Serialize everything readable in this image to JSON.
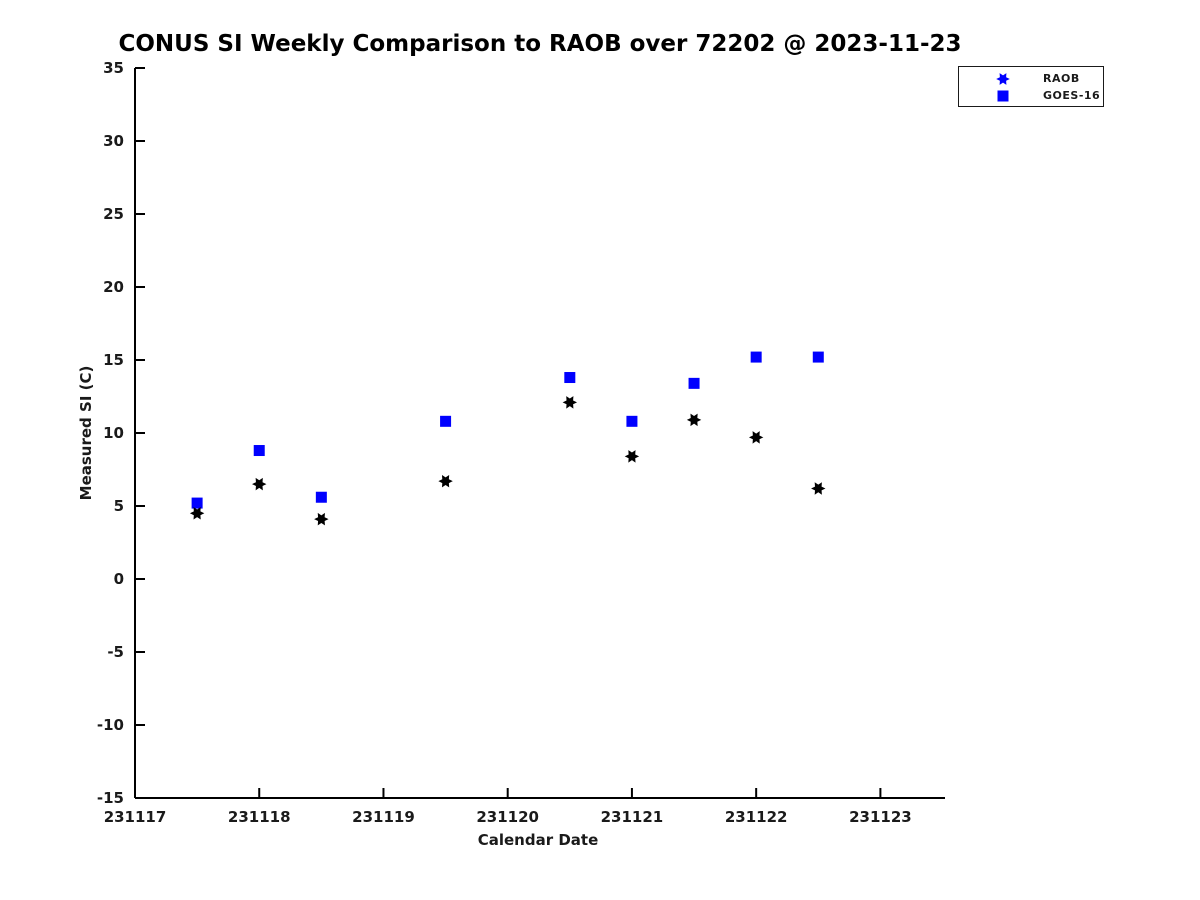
{
  "title": "CONUS SI Weekly Comparison to RAOB over 72202 @ 2023-11-23",
  "colors": {
    "background": "#ffffff",
    "axis": "#000000",
    "tick_label": "#1a1a1a",
    "raob_marker": "#000000",
    "goes16_marker": "#0000ff",
    "legend_marker": "#0000ff"
  },
  "chart_data": {
    "type": "scatter",
    "title": "CONUS SI Weekly Comparison to RAOB over 72202 @ 2023-11-23",
    "xlabel": "Calendar Date",
    "ylabel": "Measured SI (C)",
    "xlim": [
      231117,
      231123.52
    ],
    "ylim": [
      -15,
      35
    ],
    "x_ticks": [
      "231117",
      "231118",
      "231119",
      "231120",
      "231121",
      "231122",
      "231123"
    ],
    "y_ticks": [
      "35",
      "30",
      "25",
      "20",
      "15",
      "10",
      "5",
      "0",
      "-5",
      "-10",
      "-15"
    ],
    "grid": false,
    "x": [
      231117.5,
      231118.0,
      231118.5,
      231119.5,
      231120.5,
      231121.0,
      231121.5,
      231122.0,
      231122.5
    ],
    "series": [
      {
        "name": "RAOB",
        "marker": "hexagram",
        "color": "#000000",
        "legend_color": "#0000ff",
        "values": [
          4.5,
          6.5,
          4.1,
          6.7,
          12.1,
          8.4,
          10.9,
          9.7,
          6.2
        ]
      },
      {
        "name": "GOES-16",
        "marker": "square",
        "color": "#0000ff",
        "legend_color": "#0000ff",
        "values": [
          5.2,
          8.8,
          5.6,
          10.8,
          13.8,
          10.8,
          13.4,
          15.2,
          15.2
        ]
      }
    ],
    "legend": {
      "position": "top-right",
      "entries": [
        "RAOB",
        "GOES-16"
      ]
    }
  }
}
